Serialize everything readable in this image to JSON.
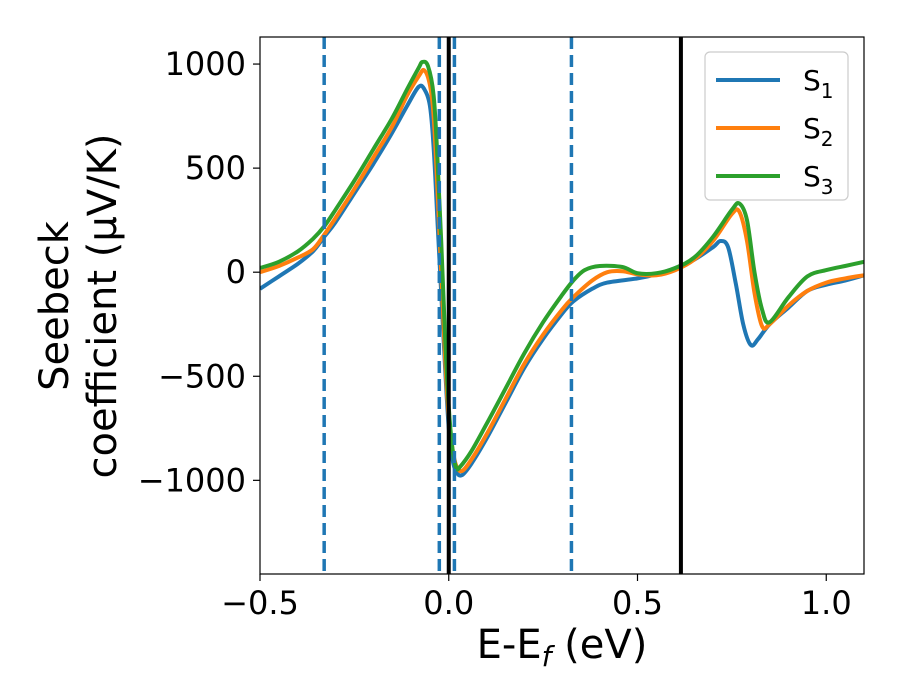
{
  "chart_data": {
    "type": "line",
    "xlabel": "E-E",
    "xlabel_sub": "f",
    "xlabel_unit": " (eV)",
    "ylabel_line1": "Seebeck",
    "ylabel_line2": "coefficient  (μV/K)",
    "xlim": [
      -0.5,
      1.1
    ],
    "ylim": [
      -1450,
      1130
    ],
    "xticks": [
      -0.5,
      0.0,
      0.5,
      1.0
    ],
    "xtick_labels": [
      "−0.5",
      "0.0",
      "0.5",
      "1.0"
    ],
    "yticks": [
      -1000,
      -500,
      0,
      500,
      1000
    ],
    "ytick_labels": [
      "−1000",
      "−500",
      "0",
      "500",
      "1000"
    ],
    "grid": false,
    "legend_position": "top-right",
    "series": [
      {
        "name": "S",
        "sub": "1",
        "color": "#1f77b4",
        "points": [
          [
            -0.5,
            -80
          ],
          [
            -0.45,
            -20
          ],
          [
            -0.4,
            40
          ],
          [
            -0.36,
            100
          ],
          [
            -0.33,
            170
          ],
          [
            -0.3,
            240
          ],
          [
            -0.25,
            380
          ],
          [
            -0.2,
            520
          ],
          [
            -0.15,
            670
          ],
          [
            -0.11,
            800
          ],
          [
            -0.08,
            890
          ],
          [
            -0.065,
            880
          ],
          [
            -0.05,
            800
          ],
          [
            -0.04,
            600
          ],
          [
            -0.03,
            250
          ],
          [
            -0.02,
            -100
          ],
          [
            -0.01,
            -450
          ],
          [
            0.0,
            -750
          ],
          [
            0.01,
            -900
          ],
          [
            0.02,
            -960
          ],
          [
            0.035,
            -975
          ],
          [
            0.06,
            -920
          ],
          [
            0.1,
            -800
          ],
          [
            0.15,
            -630
          ],
          [
            0.2,
            -460
          ],
          [
            0.25,
            -320
          ],
          [
            0.3,
            -200
          ],
          [
            0.33,
            -140
          ],
          [
            0.38,
            -80
          ],
          [
            0.42,
            -50
          ],
          [
            0.5,
            -30
          ],
          [
            0.55,
            -10
          ],
          [
            0.6,
            20
          ],
          [
            0.65,
            60
          ],
          [
            0.7,
            120
          ],
          [
            0.72,
            150
          ],
          [
            0.74,
            120
          ],
          [
            0.76,
            -50
          ],
          [
            0.78,
            -250
          ],
          [
            0.8,
            -350
          ],
          [
            0.82,
            -320
          ],
          [
            0.85,
            -250
          ],
          [
            0.9,
            -170
          ],
          [
            0.95,
            -90
          ],
          [
            1.0,
            -60
          ],
          [
            1.05,
            -40
          ],
          [
            1.1,
            -15
          ]
        ]
      },
      {
        "name": "S",
        "sub": "2",
        "color": "#ff7f0e",
        "points": [
          [
            -0.5,
            0
          ],
          [
            -0.45,
            30
          ],
          [
            -0.4,
            70
          ],
          [
            -0.36,
            110
          ],
          [
            -0.33,
            180
          ],
          [
            -0.3,
            260
          ],
          [
            -0.25,
            400
          ],
          [
            -0.2,
            550
          ],
          [
            -0.15,
            700
          ],
          [
            -0.11,
            850
          ],
          [
            -0.08,
            940
          ],
          [
            -0.065,
            970
          ],
          [
            -0.05,
            900
          ],
          [
            -0.04,
            750
          ],
          [
            -0.03,
            400
          ],
          [
            -0.02,
            0
          ],
          [
            -0.01,
            -400
          ],
          [
            0.0,
            -700
          ],
          [
            0.01,
            -850
          ],
          [
            0.02,
            -930
          ],
          [
            0.035,
            -955
          ],
          [
            0.06,
            -900
          ],
          [
            0.1,
            -780
          ],
          [
            0.15,
            -610
          ],
          [
            0.2,
            -440
          ],
          [
            0.25,
            -300
          ],
          [
            0.3,
            -180
          ],
          [
            0.33,
            -120
          ],
          [
            0.38,
            -40
          ],
          [
            0.42,
            0
          ],
          [
            0.46,
            5
          ],
          [
            0.5,
            -10
          ],
          [
            0.55,
            -15
          ],
          [
            0.6,
            10
          ],
          [
            0.65,
            60
          ],
          [
            0.7,
            150
          ],
          [
            0.75,
            280
          ],
          [
            0.77,
            290
          ],
          [
            0.79,
            150
          ],
          [
            0.81,
            -100
          ],
          [
            0.83,
            -260
          ],
          [
            0.85,
            -250
          ],
          [
            0.9,
            -160
          ],
          [
            0.95,
            -90
          ],
          [
            1.0,
            -50
          ],
          [
            1.05,
            -30
          ],
          [
            1.1,
            -15
          ]
        ]
      },
      {
        "name": "S",
        "sub": "3",
        "color": "#2ca02c",
        "points": [
          [
            -0.5,
            20
          ],
          [
            -0.45,
            50
          ],
          [
            -0.4,
            100
          ],
          [
            -0.36,
            160
          ],
          [
            -0.33,
            220
          ],
          [
            -0.3,
            300
          ],
          [
            -0.25,
            440
          ],
          [
            -0.2,
            590
          ],
          [
            -0.15,
            740
          ],
          [
            -0.11,
            880
          ],
          [
            -0.08,
            980
          ],
          [
            -0.07,
            1010
          ],
          [
            -0.055,
            990
          ],
          [
            -0.04,
            850
          ],
          [
            -0.03,
            550
          ],
          [
            -0.02,
            150
          ],
          [
            -0.01,
            -300
          ],
          [
            0.0,
            -650
          ],
          [
            0.01,
            -850
          ],
          [
            0.02,
            -940
          ],
          [
            0.03,
            -935
          ],
          [
            0.06,
            -860
          ],
          [
            0.1,
            -730
          ],
          [
            0.15,
            -560
          ],
          [
            0.2,
            -390
          ],
          [
            0.25,
            -240
          ],
          [
            0.3,
            -110
          ],
          [
            0.33,
            -40
          ],
          [
            0.36,
            10
          ],
          [
            0.4,
            30
          ],
          [
            0.46,
            25
          ],
          [
            0.5,
            -5
          ],
          [
            0.55,
            -5
          ],
          [
            0.6,
            20
          ],
          [
            0.65,
            70
          ],
          [
            0.7,
            170
          ],
          [
            0.75,
            300
          ],
          [
            0.77,
            330
          ],
          [
            0.79,
            250
          ],
          [
            0.81,
            0
          ],
          [
            0.83,
            -180
          ],
          [
            0.85,
            -240
          ],
          [
            0.9,
            -120
          ],
          [
            0.95,
            -20
          ],
          [
            1.0,
            10
          ],
          [
            1.05,
            30
          ],
          [
            1.1,
            50
          ]
        ]
      }
    ],
    "vlines": [
      {
        "x": -0.33,
        "style": "dashed",
        "color": "#1f77b4"
      },
      {
        "x": -0.025,
        "style": "dashed",
        "color": "#1f77b4"
      },
      {
        "x": 0.015,
        "style": "dashed",
        "color": "#1f77b4"
      },
      {
        "x": 0.325,
        "style": "dashed",
        "color": "#1f77b4"
      },
      {
        "x": 0.0,
        "style": "solid",
        "color": "#000000"
      },
      {
        "x": 0.615,
        "style": "solid",
        "color": "#000000"
      }
    ]
  }
}
